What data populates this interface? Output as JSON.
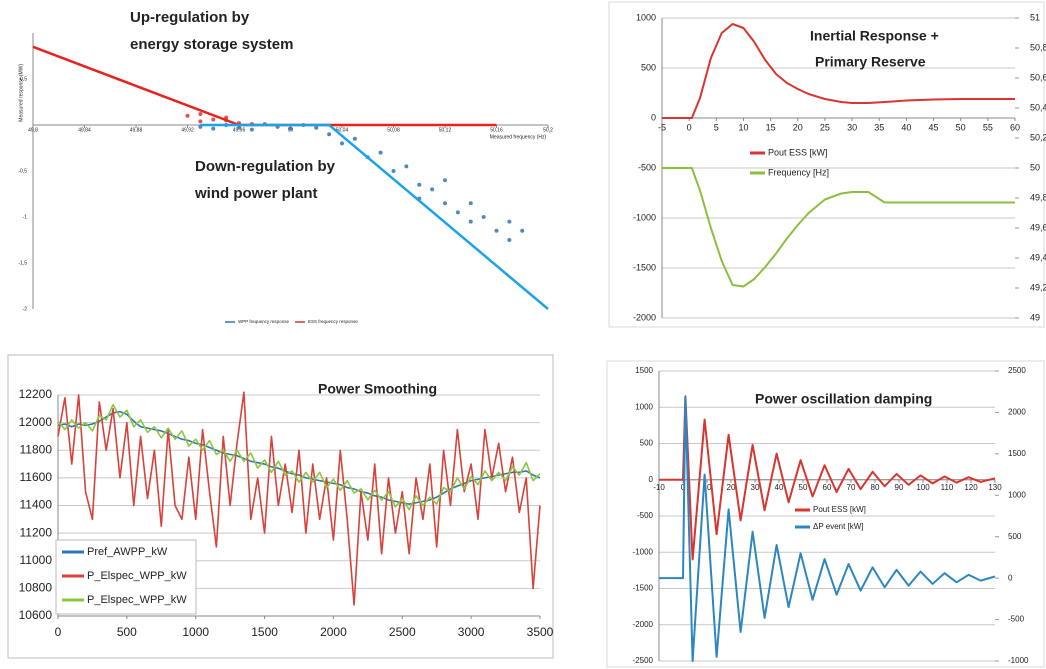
{
  "chart_data": [
    {
      "type": "scatter",
      "annotations": [
        {
          "text": [
            "Up-regulation by",
            "energy storage system"
          ],
          "color": "#e8231f"
        },
        {
          "text": [
            "Down-regulation by",
            "wind power plant"
          ],
          "color": "#2ea7e0"
        }
      ],
      "xlabel": "Measured frequency (Hz)",
      "ylabel": "Measured response (MW)",
      "xaxis": "zero",
      "xlim": [
        49.8,
        50.2
      ],
      "xticks": [
        {
          "value": 49.8,
          "label": "49,8"
        },
        {
          "value": 49.84,
          "label": "49,84"
        },
        {
          "value": 49.88,
          "label": "49,88"
        },
        {
          "value": 49.92,
          "label": "49,92"
        },
        {
          "value": 49.96,
          "label": "49,96"
        },
        50,
        {
          "value": 50.04,
          "label": "50,04"
        },
        {
          "value": 50.08,
          "label": "50,08"
        },
        {
          "value": 50.12,
          "label": "50,12"
        },
        {
          "value": 50.16,
          "label": "50,16"
        },
        {
          "value": 50.2,
          "label": "50,2"
        }
      ],
      "ylim": [
        -2,
        1
      ],
      "yticks": [
        -2,
        {
          "value": -1.5,
          "label": "-1,5"
        },
        -1,
        {
          "value": -0.5,
          "label": "-0,5"
        },
        {
          "value": 0.5,
          "label": "0,5"
        }
      ],
      "grid": false,
      "series": [
        {
          "name": "WPP frequency response",
          "color": "#2e75b6",
          "mode": "markers",
          "x": [
            49.93,
            49.94,
            49.95,
            49.96,
            49.97,
            49.98,
            49.99,
            50,
            50.01,
            50.02,
            50.03,
            50.04,
            50.05,
            50.06,
            50.07,
            50.08,
            50.09,
            50.1,
            50.1,
            50.11,
            50.12,
            50.12,
            50.13,
            50.14,
            50.14,
            50.15,
            50.16,
            50.17,
            50.17,
            50.18
          ],
          "values": [
            -0.02,
            -0.04,
            0,
            -0.03,
            -0.05,
            0.01,
            -0.02,
            -0.04,
            0,
            -0.03,
            -0.1,
            -0.2,
            -0.15,
            -0.35,
            -0.3,
            -0.5,
            -0.45,
            -0.65,
            -0.8,
            -0.7,
            -0.85,
            -0.6,
            -0.95,
            -0.85,
            -1.05,
            -1,
            -1.15,
            -1.05,
            -1.25,
            -1.15
          ]
        },
        {
          "name": "ESS frequency response",
          "color": "#d9352e",
          "mode": "markers",
          "x": [
            49.92,
            49.93,
            49.93,
            49.94,
            49.95,
            49.95,
            49.96,
            49.97
          ],
          "values": [
            0.1,
            0.12,
            0.04,
            0.06,
            0.05,
            0.08,
            0.02,
            0.01
          ]
        },
        {
          "color": "#e8231f",
          "mode": "lines",
          "x": [
            49.8,
            49.96,
            50.16
          ],
          "values": [
            0.85,
            0,
            0
          ]
        },
        {
          "color": "#1aa3e8",
          "mode": "lines",
          "x": [
            49.93,
            50.03,
            50.2
          ],
          "values": [
            0,
            0,
            -2
          ]
        }
      ]
    },
    {
      "type": "line",
      "title": [
        "Inertial Response +",
        "Primary Reserve"
      ],
      "xaxis": "zero",
      "xlim": [
        -5,
        60
      ],
      "xticks": [
        -5,
        0,
        5,
        10,
        15,
        20,
        25,
        30,
        35,
        40,
        45,
        50,
        55,
        60
      ],
      "ylim": [
        -2000,
        1000
      ],
      "yticks": [
        -2000,
        -1500,
        -1000,
        -500,
        0,
        500,
        1000
      ],
      "y2lim": [
        49,
        51
      ],
      "y2ticks": [
        49,
        {
          "value": 49.2,
          "label": "49,2"
        },
        {
          "value": 49.4,
          "label": "49,4"
        },
        {
          "value": 49.6,
          "label": "49,6"
        },
        {
          "value": 49.8,
          "label": "49,8"
        },
        50,
        {
          "value": 50.2,
          "label": "50,2"
        },
        {
          "value": 50.4,
          "label": "50,4"
        },
        {
          "value": 50.6,
          "label": "50,6"
        },
        {
          "value": 50.8,
          "label": "50,8"
        },
        51
      ],
      "grid": true,
      "x": [
        -5,
        0,
        0.5,
        2,
        4,
        6,
        8,
        10,
        12,
        14,
        16,
        18,
        20,
        22,
        25,
        28,
        30,
        33,
        36,
        40,
        45,
        50,
        55,
        60
      ],
      "series": [
        {
          "name": "Pout ESS [kW]",
          "color": "#d9352e",
          "mode": "lines",
          "values": [
            0,
            0,
            0,
            200,
            600,
            850,
            940,
            900,
            760,
            580,
            440,
            350,
            290,
            240,
            190,
            160,
            150,
            150,
            160,
            175,
            185,
            190,
            190,
            190
          ]
        },
        {
          "name": "Frequency [Hz]",
          "color": "#8cbf3f",
          "mode": "lines",
          "axis": "y2",
          "values": [
            50,
            50,
            50,
            49.85,
            49.6,
            49.38,
            49.22,
            49.21,
            49.26,
            49.34,
            49.43,
            49.53,
            49.62,
            49.7,
            49.79,
            49.83,
            49.84,
            49.84,
            49.77,
            49.77,
            49.77,
            49.77,
            49.77,
            49.77
          ]
        }
      ]
    },
    {
      "type": "line",
      "title": "Power Smoothing",
      "xaxis": "bottom",
      "xlim": [
        0,
        3500
      ],
      "xticks": [
        0,
        500,
        1000,
        1500,
        2000,
        2500,
        3000,
        3500
      ],
      "ylim": [
        10600,
        12200
      ],
      "yticks": [
        10600,
        10800,
        11000,
        11200,
        11400,
        11600,
        11800,
        12000,
        12200
      ],
      "grid": true,
      "x": [
        0,
        50,
        100,
        150,
        200,
        250,
        300,
        350,
        400,
        450,
        500,
        550,
        600,
        650,
        700,
        750,
        800,
        850,
        900,
        950,
        1000,
        1050,
        1100,
        1150,
        1200,
        1250,
        1300,
        1350,
        1400,
        1450,
        1500,
        1550,
        1600,
        1650,
        1700,
        1750,
        1800,
        1850,
        1900,
        1950,
        2000,
        2050,
        2100,
        2150,
        2200,
        2250,
        2300,
        2350,
        2400,
        2450,
        2500,
        2550,
        2600,
        2650,
        2700,
        2750,
        2800,
        2850,
        2900,
        2950,
        3000,
        3050,
        3100,
        3150,
        3200,
        3250,
        3300,
        3350,
        3400,
        3450,
        3500
      ],
      "series": [
        {
          "name": "Pref_AWPP_kW",
          "color": "#2e75b6",
          "mode": "lines",
          "values": [
            11980,
            11990,
            11970,
            11990,
            11980,
            11990,
            12010,
            12040,
            12070,
            12080,
            12060,
            12010,
            11970,
            11960,
            11950,
            11940,
            11920,
            11900,
            11880,
            11870,
            11850,
            11840,
            11820,
            11800,
            11780,
            11770,
            11760,
            11740,
            11720,
            11710,
            11700,
            11680,
            11670,
            11650,
            11630,
            11620,
            11600,
            11590,
            11580,
            11570,
            11560,
            11550,
            11530,
            11520,
            11500,
            11490,
            11470,
            11460,
            11440,
            11430,
            11420,
            11410,
            11420,
            11430,
            11440,
            11460,
            11490,
            11520,
            11540,
            11560,
            11580,
            11590,
            11600,
            11610,
            11620,
            11630,
            11640,
            11640,
            11650,
            11620,
            11600
          ]
        },
        {
          "name": "P_Elspec_WPP_kW",
          "color": "#d9413b",
          "mode": "lines",
          "values": [
            11900,
            12180,
            11700,
            12200,
            11500,
            11300,
            12150,
            11800,
            12100,
            11600,
            12000,
            11400,
            11900,
            11450,
            11800,
            11250,
            11950,
            11400,
            11300,
            11750,
            11300,
            11950,
            11500,
            11100,
            11900,
            11400,
            11850,
            12220,
            11300,
            11600,
            11200,
            11900,
            11400,
            11700,
            11350,
            11800,
            11200,
            11700,
            11300,
            11600,
            11150,
            11800,
            11300,
            10680,
            11500,
            11150,
            11700,
            11050,
            11600,
            11200,
            11500,
            11050,
            11600,
            11300,
            11700,
            11100,
            11800,
            11400,
            11950,
            11500,
            11700,
            11300,
            11950,
            11600,
            11850,
            11500,
            11750,
            11350,
            11600,
            10800,
            11400
          ]
        },
        {
          "name": "P_Elspec_WPP_kW",
          "color": "#8cc63f",
          "mode": "lines",
          "values": [
            12010,
            11950,
            12020,
            11960,
            12000,
            11940,
            12050,
            12020,
            12130,
            12040,
            12090,
            11970,
            12020,
            11930,
            11970,
            11890,
            11960,
            11880,
            11940,
            11830,
            11880,
            11800,
            11870,
            11770,
            11800,
            11720,
            11800,
            11720,
            11780,
            11670,
            11730,
            11640,
            11720,
            11620,
            11650,
            11570,
            11640,
            11570,
            11640,
            11530,
            11590,
            11510,
            11580,
            11490,
            11520,
            11440,
            11510,
            11440,
            11500,
            11390,
            11450,
            11370,
            11470,
            11400,
            11460,
            11410,
            11530,
            11500,
            11600,
            11520,
            11610,
            11550,
            11650,
            11580,
            11640,
            11580,
            11680,
            11620,
            11710,
            11580,
            11630
          ]
        }
      ]
    },
    {
      "type": "line",
      "title": "Power oscillation damping",
      "xaxis": "zero",
      "xlim": [
        -10,
        130
      ],
      "xticks": [
        -10,
        0,
        10,
        20,
        30,
        40,
        50,
        60,
        70,
        80,
        90,
        100,
        110,
        120,
        130
      ],
      "ylim": [
        -2500,
        1500
      ],
      "yticks": [
        -2500,
        -2000,
        -1500,
        -1000,
        -500,
        0,
        500,
        1000,
        1500
      ],
      "y2lim": [
        -1000,
        2500
      ],
      "y2ticks": [
        -1000,
        -500,
        0,
        500,
        1000,
        1500,
        2000,
        2500
      ],
      "grid": true,
      "x": [
        -10,
        0,
        1,
        4,
        9,
        14,
        19,
        24,
        29,
        34,
        39,
        44,
        49,
        54,
        59,
        64,
        69,
        74,
        79,
        84,
        89,
        94,
        99,
        104,
        109,
        114,
        119,
        124,
        130
      ],
      "series": [
        {
          "name": "Pout ESS [kW]",
          "color": "#d9352e",
          "mode": "lines",
          "values": [
            0,
            0,
            1150,
            -1100,
            830,
            -750,
            620,
            -560,
            480,
            -420,
            360,
            -310,
            270,
            -230,
            200,
            -170,
            150,
            -130,
            110,
            -90,
            80,
            -70,
            60,
            -50,
            45,
            -40,
            35,
            -30,
            20
          ]
        },
        {
          "name": "ΔP event [kW]",
          "color": "#2e86c1",
          "mode": "lines",
          "axis": "y2",
          "values": [
            0,
            0,
            2180,
            -1000,
            1250,
            -950,
            830,
            -650,
            560,
            -480,
            400,
            -350,
            300,
            -260,
            230,
            -200,
            170,
            -150,
            130,
            -110,
            100,
            -90,
            80,
            -70,
            60,
            -50,
            40,
            -30,
            20
          ]
        }
      ]
    }
  ]
}
